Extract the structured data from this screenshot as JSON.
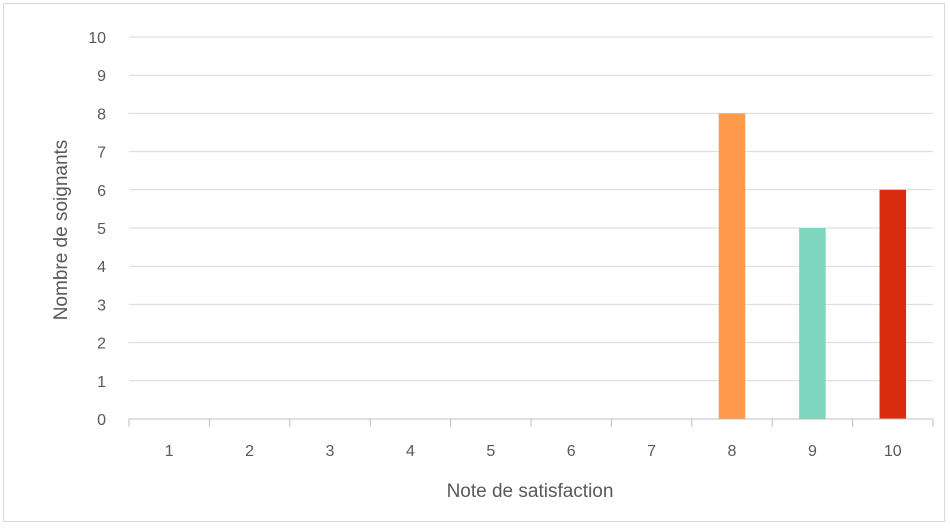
{
  "chart_data": {
    "type": "bar",
    "xlabel": "Note de satisfaction",
    "ylabel": "Nombre de soignants",
    "categories": [
      "1",
      "2",
      "3",
      "4",
      "5",
      "6",
      "7",
      "8",
      "9",
      "10"
    ],
    "values": [
      0,
      0,
      0,
      0,
      0,
      0,
      0,
      8,
      5,
      6
    ],
    "bar_colors": [
      "#ff9a4d",
      "#ff9a4d",
      "#ff9a4d",
      "#ff9a4d",
      "#ff9a4d",
      "#ff9a4d",
      "#ff9a4d",
      "#ff9a4d",
      "#7dd6bd",
      "#d92b10"
    ],
    "ylim": [
      0,
      10
    ],
    "yticks": [
      0,
      1,
      2,
      3,
      4,
      5,
      6,
      7,
      8,
      9,
      10
    ],
    "grid": true,
    "legend": false
  }
}
